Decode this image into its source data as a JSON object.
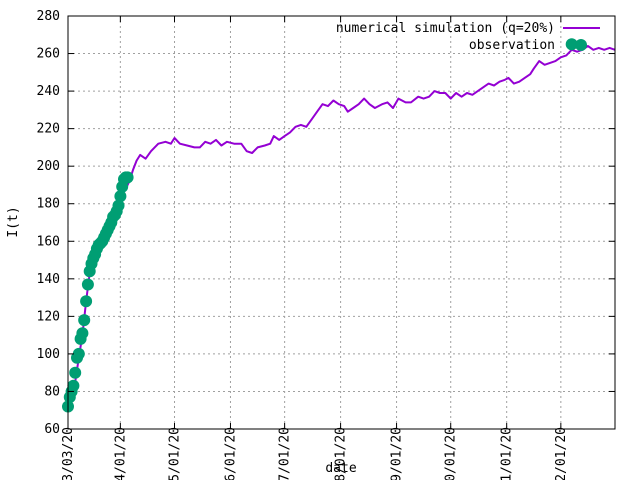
{
  "chart_data": {
    "type": "line",
    "xlabel": "date",
    "ylabel": "I(t)",
    "ylim": [
      60,
      280
    ],
    "yticks": [
      60,
      80,
      100,
      120,
      140,
      160,
      180,
      200,
      220,
      240,
      260,
      280
    ],
    "xlim": [
      "2020-03-03",
      "2020-12-31"
    ],
    "xticks": [
      {
        "date": "2020-03-03",
        "label": "03/03/20"
      },
      {
        "date": "2020-04-01",
        "label": "04/01/20"
      },
      {
        "date": "2020-05-01",
        "label": "05/01/20"
      },
      {
        "date": "2020-06-01",
        "label": "06/01/20"
      },
      {
        "date": "2020-07-01",
        "label": "07/01/20"
      },
      {
        "date": "2020-08-01",
        "label": "08/01/20"
      },
      {
        "date": "2020-09-01",
        "label": "09/01/20"
      },
      {
        "date": "2020-10-01",
        "label": "10/01/20"
      },
      {
        "date": "2020-11-01",
        "label": "11/01/20"
      },
      {
        "date": "2020-12-01",
        "label": "12/01/20"
      }
    ],
    "grid": true,
    "legend_position": "top-right",
    "series": [
      {
        "name": "numerical simulation (q=20%)",
        "style": "line",
        "color": "#9400d3",
        "points": [
          [
            "2020-03-03",
            72
          ],
          [
            "2020-03-05",
            78
          ],
          [
            "2020-03-07",
            85
          ],
          [
            "2020-03-09",
            98
          ],
          [
            "2020-03-11",
            110
          ],
          [
            "2020-03-13",
            128
          ],
          [
            "2020-03-15",
            143
          ],
          [
            "2020-03-17",
            151
          ],
          [
            "2020-03-19",
            156
          ],
          [
            "2020-03-21",
            160
          ],
          [
            "2020-03-23",
            165
          ],
          [
            "2020-03-25",
            170
          ],
          [
            "2020-03-27",
            175
          ],
          [
            "2020-03-29",
            178
          ],
          [
            "2020-03-31",
            182
          ],
          [
            "2020-04-02",
            186
          ],
          [
            "2020-04-04",
            188
          ],
          [
            "2020-04-06",
            192
          ],
          [
            "2020-04-08",
            198
          ],
          [
            "2020-04-10",
            203
          ],
          [
            "2020-04-12",
            206
          ],
          [
            "2020-04-15",
            204
          ],
          [
            "2020-04-18",
            208
          ],
          [
            "2020-04-22",
            212
          ],
          [
            "2020-04-26",
            213
          ],
          [
            "2020-04-29",
            212
          ],
          [
            "2020-05-01",
            215
          ],
          [
            "2020-05-04",
            212
          ],
          [
            "2020-05-08",
            211
          ],
          [
            "2020-05-12",
            210
          ],
          [
            "2020-05-15",
            210
          ],
          [
            "2020-05-18",
            213
          ],
          [
            "2020-05-21",
            212
          ],
          [
            "2020-05-24",
            214
          ],
          [
            "2020-05-27",
            211
          ],
          [
            "2020-05-30",
            213
          ],
          [
            "2020-06-03",
            212
          ],
          [
            "2020-06-07",
            212
          ],
          [
            "2020-06-10",
            208
          ],
          [
            "2020-06-13",
            207
          ],
          [
            "2020-06-16",
            210
          ],
          [
            "2020-06-20",
            211
          ],
          [
            "2020-06-23",
            212
          ],
          [
            "2020-06-25",
            216
          ],
          [
            "2020-06-28",
            214
          ],
          [
            "2020-07-01",
            216
          ],
          [
            "2020-07-04",
            218
          ],
          [
            "2020-07-07",
            221
          ],
          [
            "2020-07-10",
            222
          ],
          [
            "2020-07-13",
            221
          ],
          [
            "2020-07-16",
            225
          ],
          [
            "2020-07-19",
            229
          ],
          [
            "2020-07-22",
            233
          ],
          [
            "2020-07-25",
            232
          ],
          [
            "2020-07-28",
            235
          ],
          [
            "2020-07-31",
            233
          ],
          [
            "2020-08-03",
            232
          ],
          [
            "2020-08-05",
            229
          ],
          [
            "2020-08-08",
            231
          ],
          [
            "2020-08-11",
            233
          ],
          [
            "2020-08-14",
            236
          ],
          [
            "2020-08-17",
            233
          ],
          [
            "2020-08-20",
            231
          ],
          [
            "2020-08-24",
            233
          ],
          [
            "2020-08-27",
            234
          ],
          [
            "2020-08-30",
            231
          ],
          [
            "2020-09-02",
            236
          ],
          [
            "2020-09-06",
            234
          ],
          [
            "2020-09-09",
            234
          ],
          [
            "2020-09-13",
            237
          ],
          [
            "2020-09-16",
            236
          ],
          [
            "2020-09-19",
            237
          ],
          [
            "2020-09-22",
            240
          ],
          [
            "2020-09-25",
            239
          ],
          [
            "2020-09-28",
            239
          ],
          [
            "2020-10-01",
            236
          ],
          [
            "2020-10-04",
            239
          ],
          [
            "2020-10-07",
            237
          ],
          [
            "2020-10-10",
            239
          ],
          [
            "2020-10-13",
            238
          ],
          [
            "2020-10-16",
            240
          ],
          [
            "2020-10-19",
            242
          ],
          [
            "2020-10-22",
            244
          ],
          [
            "2020-10-25",
            243
          ],
          [
            "2020-10-28",
            245
          ],
          [
            "2020-10-31",
            246
          ],
          [
            "2020-11-02",
            247
          ],
          [
            "2020-11-05",
            244
          ],
          [
            "2020-11-08",
            245
          ],
          [
            "2020-11-11",
            247
          ],
          [
            "2020-11-14",
            249
          ],
          [
            "2020-11-16",
            252
          ],
          [
            "2020-11-19",
            256
          ],
          [
            "2020-11-22",
            254
          ],
          [
            "2020-11-25",
            255
          ],
          [
            "2020-11-28",
            256
          ],
          [
            "2020-12-01",
            258
          ],
          [
            "2020-12-04",
            259
          ],
          [
            "2020-12-07",
            262
          ],
          [
            "2020-12-10",
            261
          ],
          [
            "2020-12-13",
            262
          ],
          [
            "2020-12-16",
            264
          ],
          [
            "2020-12-19",
            262
          ],
          [
            "2020-12-22",
            263
          ],
          [
            "2020-12-25",
            262
          ],
          [
            "2020-12-28",
            263
          ],
          [
            "2020-12-31",
            262
          ]
        ]
      },
      {
        "name": "observation",
        "style": "points",
        "color": "#009e73",
        "points": [
          [
            "2020-03-03",
            72
          ],
          [
            "2020-03-04",
            77
          ],
          [
            "2020-03-05",
            80
          ],
          [
            "2020-03-06",
            83
          ],
          [
            "2020-03-07",
            90
          ],
          [
            "2020-03-08",
            98
          ],
          [
            "2020-03-09",
            100
          ],
          [
            "2020-03-10",
            108
          ],
          [
            "2020-03-11",
            111
          ],
          [
            "2020-03-12",
            118
          ],
          [
            "2020-03-13",
            128
          ],
          [
            "2020-03-14",
            137
          ],
          [
            "2020-03-15",
            144
          ],
          [
            "2020-03-16",
            148
          ],
          [
            "2020-03-17",
            151
          ],
          [
            "2020-03-18",
            153
          ],
          [
            "2020-03-19",
            156
          ],
          [
            "2020-03-20",
            158
          ],
          [
            "2020-03-21",
            159
          ],
          [
            "2020-03-22",
            160
          ],
          [
            "2020-03-23",
            162
          ],
          [
            "2020-03-24",
            164
          ],
          [
            "2020-03-25",
            166
          ],
          [
            "2020-03-26",
            168
          ],
          [
            "2020-03-27",
            170
          ],
          [
            "2020-03-28",
            173
          ],
          [
            "2020-03-29",
            174
          ],
          [
            "2020-03-30",
            176
          ],
          [
            "2020-03-31",
            179
          ],
          [
            "2020-04-01",
            184
          ],
          [
            "2020-04-02",
            189
          ],
          [
            "2020-04-03",
            193
          ],
          [
            "2020-04-04",
            194
          ],
          [
            "2020-04-05",
            194
          ],
          [
            "2020-12-07",
            265
          ]
        ]
      }
    ]
  }
}
